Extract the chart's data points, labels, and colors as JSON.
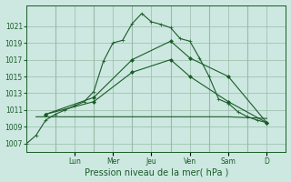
{
  "xlabel": "Pression niveau de la mer( hPa )",
  "bg_color": "#cce8e0",
  "plot_bg_color": "#cce8e0",
  "grid_color": "#99bbaa",
  "line_color": "#1a5c28",
  "ylim": [
    1006,
    1023.5
  ],
  "yticks": [
    1007,
    1009,
    1011,
    1013,
    1015,
    1017,
    1019,
    1021
  ],
  "xlim": [
    0,
    13.5
  ],
  "day_labels": [
    "Lun",
    "Mer",
    "Jeu",
    "Ven",
    "Sam",
    "D"
  ],
  "day_positions": [
    2.5,
    4.5,
    6.5,
    8.5,
    10.5,
    12.5
  ],
  "day_vline_positions": [
    1.5,
    3.5,
    5.5,
    7.5,
    9.5,
    11.5
  ],
  "series": [
    {
      "x": [
        0.0,
        0.5,
        1.0,
        1.5,
        2.0,
        2.5,
        3.0,
        3.5,
        4.0,
        4.5,
        5.0,
        5.5,
        6.0,
        6.5,
        7.0,
        7.5,
        8.0,
        8.5,
        9.0,
        9.5,
        10.0,
        10.5,
        11.0,
        11.5,
        12.0,
        12.5
      ],
      "y": [
        1007.0,
        1008.0,
        1009.8,
        1010.5,
        1011.0,
        1011.5,
        1012.0,
        1013.2,
        1016.8,
        1019.0,
        1019.3,
        1021.3,
        1022.5,
        1021.5,
        1021.2,
        1020.8,
        1019.5,
        1019.2,
        1017.2,
        1015.0,
        1012.3,
        1011.8,
        1010.8,
        1010.2,
        1009.8,
        1009.5
      ],
      "marker": "+"
    },
    {
      "x": [
        1.0,
        3.5,
        5.5,
        7.5,
        8.5,
        10.5,
        12.5
      ],
      "y": [
        1010.5,
        1012.5,
        1017.0,
        1019.2,
        1017.2,
        1015.0,
        1009.5
      ],
      "marker": "D"
    },
    {
      "x": [
        1.0,
        3.5,
        5.5,
        7.5,
        8.5,
        10.5,
        12.5
      ],
      "y": [
        1010.5,
        1012.0,
        1015.5,
        1017.0,
        1015.0,
        1012.0,
        1009.5
      ],
      "marker": "D"
    },
    {
      "x": [
        0.5,
        2.0,
        4.0,
        6.5,
        8.5,
        10.5,
        12.5
      ],
      "y": [
        1010.2,
        1010.2,
        1010.2,
        1010.2,
        1010.2,
        1010.2,
        1010.0
      ],
      "marker": null
    }
  ],
  "marker_main": "+",
  "marker_diag": "D",
  "markersize_main": 3.0,
  "markersize_diag": 2.0,
  "linewidth": 0.8
}
